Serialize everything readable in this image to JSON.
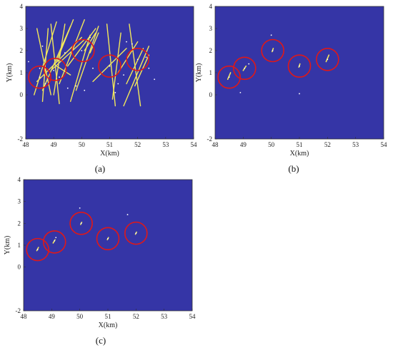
{
  "chart_data": [
    {
      "type": "scatter",
      "panel_label": "(a)",
      "xlabel": "X(km)",
      "ylabel": "Y(km)",
      "xlim": [
        48,
        54
      ],
      "ylim": [
        -2,
        4
      ],
      "x_ticks": [
        48,
        49,
        50,
        51,
        52,
        53,
        54
      ],
      "y_ticks": [
        -2,
        0,
        1,
        2,
        3,
        4
      ],
      "background_color": "#3535a6",
      "mark_color": "#f3e85a",
      "circle_color": "#e01818",
      "circles": [
        {
          "x": 48.5,
          "y": 0.8
        },
        {
          "x": 49.05,
          "y": 1.15
        },
        {
          "x": 50.05,
          "y": 2.0
        },
        {
          "x": 51.0,
          "y": 1.3
        },
        {
          "x": 52.0,
          "y": 1.6
        }
      ],
      "lines": [
        [
          48.4,
          3.0,
          48.9,
          0.0
        ],
        [
          48.3,
          0.0,
          49.1,
          3.3
        ],
        [
          48.6,
          -0.3,
          48.8,
          3.0
        ],
        [
          48.9,
          3.2,
          49.2,
          -0.4
        ],
        [
          49.0,
          0.0,
          49.4,
          3.2
        ],
        [
          49.1,
          1.5,
          49.7,
          3.4
        ],
        [
          48.6,
          0.2,
          49.6,
          3.1
        ],
        [
          49.2,
          0.5,
          50.1,
          3.4
        ],
        [
          49.5,
          1.3,
          50.5,
          3.0
        ],
        [
          48.4,
          0.6,
          50.0,
          2.6
        ],
        [
          49.6,
          -0.3,
          50.3,
          2.7
        ],
        [
          49.8,
          0.2,
          50.6,
          3.1
        ],
        [
          50.1,
          2.0,
          50.5,
          2.8
        ],
        [
          50.6,
          2.8,
          50.3,
          1.9
        ],
        [
          50.9,
          3.2,
          51.2,
          -0.5
        ],
        [
          51.1,
          -0.2,
          51.4,
          2.8
        ],
        [
          50.4,
          0.6,
          51.6,
          2.1
        ],
        [
          51.3,
          1.0,
          52.0,
          2.4
        ],
        [
          51.6,
          0.5,
          52.2,
          2.1
        ],
        [
          51.5,
          -0.5,
          52.4,
          2.2
        ],
        [
          51.7,
          3.2,
          52.1,
          -0.5
        ],
        [
          51.9,
          0.4,
          52.4,
          1.8
        ],
        [
          48.9,
          1.1,
          50.1,
          2.5
        ],
        [
          49.1,
          1.3,
          49.6,
          0.9
        ]
      ],
      "points": [
        [
          48.5,
          0.8
        ],
        [
          48.7,
          0.5
        ],
        [
          48.5,
          1.2
        ],
        [
          49.0,
          1.1
        ],
        [
          49.2,
          0.8
        ],
        [
          49.5,
          0.3
        ],
        [
          49.8,
          0.4
        ],
        [
          50.1,
          0.2
        ],
        [
          50.0,
          2.0
        ],
        [
          50.3,
          2.6
        ],
        [
          51.0,
          1.3
        ],
        [
          51.3,
          0.5
        ],
        [
          51.5,
          0.9
        ],
        [
          51.6,
          2.4
        ],
        [
          52.0,
          1.6
        ],
        [
          52.3,
          1.7
        ],
        [
          52.6,
          0.7
        ],
        [
          48.1,
          1.5
        ],
        [
          48.6,
          2.2
        ],
        [
          49.4,
          1.9
        ],
        [
          50.4,
          1.2
        ],
        [
          51.2,
          0.1
        ],
        [
          51.8,
          2.3
        ],
        [
          52.4,
          1.2
        ]
      ]
    },
    {
      "type": "scatter",
      "panel_label": "(b)",
      "xlabel": "X(km)",
      "ylabel": "Y(km)",
      "xlim": [
        48,
        54
      ],
      "ylim": [
        -2,
        4
      ],
      "x_ticks": [
        48,
        49,
        50,
        51,
        52,
        53,
        54
      ],
      "y_ticks": [
        -2,
        0,
        1,
        2,
        3,
        4
      ],
      "background_color": "#3535a6",
      "mark_color": "#f3e85a",
      "circle_color": "#e01818",
      "circles": [
        {
          "x": 48.5,
          "y": 0.8
        },
        {
          "x": 49.05,
          "y": 1.2
        },
        {
          "x": 50.05,
          "y": 2.0
        },
        {
          "x": 51.0,
          "y": 1.3
        },
        {
          "x": 52.0,
          "y": 1.6
        }
      ],
      "lines": [
        [
          48.45,
          0.7,
          48.55,
          1.0
        ],
        [
          49.0,
          1.1,
          49.1,
          1.3
        ],
        [
          50.03,
          1.95,
          50.07,
          2.1
        ],
        [
          50.98,
          1.25,
          51.02,
          1.4
        ],
        [
          51.95,
          1.5,
          52.05,
          1.8
        ]
      ],
      "points": [
        [
          48.5,
          0.8
        ],
        [
          49.05,
          1.2
        ],
        [
          50.05,
          2.0
        ],
        [
          51.0,
          1.3
        ],
        [
          52.0,
          1.6
        ],
        [
          50.0,
          2.7
        ],
        [
          51.0,
          0.05
        ],
        [
          48.9,
          0.1
        ],
        [
          49.2,
          1.4
        ]
      ]
    },
    {
      "type": "scatter",
      "panel_label": "(c)",
      "xlabel": "X(km)",
      "ylabel": "Y(km)",
      "xlim": [
        48,
        54
      ],
      "ylim": [
        -2,
        4
      ],
      "x_ticks": [
        48,
        49,
        50,
        51,
        52,
        53,
        54
      ],
      "y_ticks": [
        -2,
        0,
        1,
        2,
        3,
        4
      ],
      "background_color": "#3535a6",
      "mark_color": "#f3e85a",
      "circle_color": "#e01818",
      "circles": [
        {
          "x": 48.5,
          "y": 0.8
        },
        {
          "x": 49.1,
          "y": 1.15
        },
        {
          "x": 50.05,
          "y": 2.0
        },
        {
          "x": 51.0,
          "y": 1.3
        },
        {
          "x": 52.0,
          "y": 1.55
        }
      ],
      "lines": [
        [
          48.47,
          0.75,
          48.53,
          0.9
        ],
        [
          49.05,
          1.1,
          49.12,
          1.25
        ],
        [
          50.03,
          1.95,
          50.07,
          2.05
        ],
        [
          50.98,
          1.25,
          51.02,
          1.35
        ],
        [
          51.98,
          1.5,
          52.02,
          1.6
        ]
      ],
      "points": [
        [
          48.5,
          0.8
        ],
        [
          49.1,
          1.2
        ],
        [
          50.05,
          2.0
        ],
        [
          51.0,
          1.3
        ],
        [
          52.0,
          1.55
        ],
        [
          50.0,
          2.7
        ],
        [
          51.7,
          2.4
        ],
        [
          49.15,
          1.35
        ]
      ]
    }
  ]
}
